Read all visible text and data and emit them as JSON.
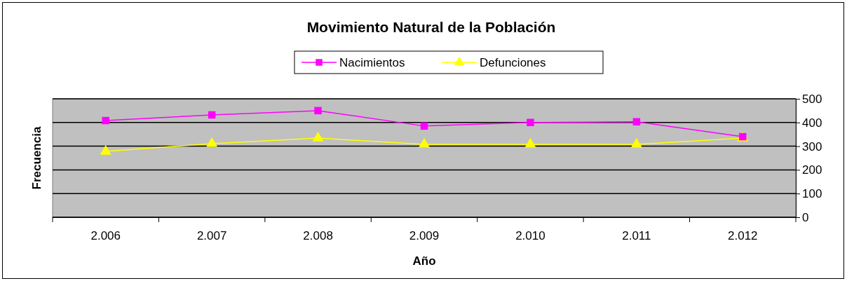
{
  "chart_data": {
    "type": "line",
    "title": "Movimiento Natural de la Población",
    "xlabel": "Año",
    "ylabel": "Frecuencia",
    "categories": [
      "2.006",
      "2.007",
      "2.008",
      "2.009",
      "2.010",
      "2.011",
      "2.012"
    ],
    "series": [
      {
        "name": "Nacimientos",
        "color": "#ff00ff",
        "marker": "square",
        "values": [
          408,
          432,
          450,
          385,
          400,
          403,
          340
        ]
      },
      {
        "name": "Defunciones",
        "color": "#ffff00",
        "marker": "triangle",
        "values": [
          278,
          311,
          334,
          308,
          308,
          308,
          334
        ]
      }
    ],
    "ylim": [
      0,
      500
    ],
    "yticks": [
      0,
      100,
      200,
      300,
      400,
      500
    ],
    "grid": "y",
    "legend": "top"
  }
}
